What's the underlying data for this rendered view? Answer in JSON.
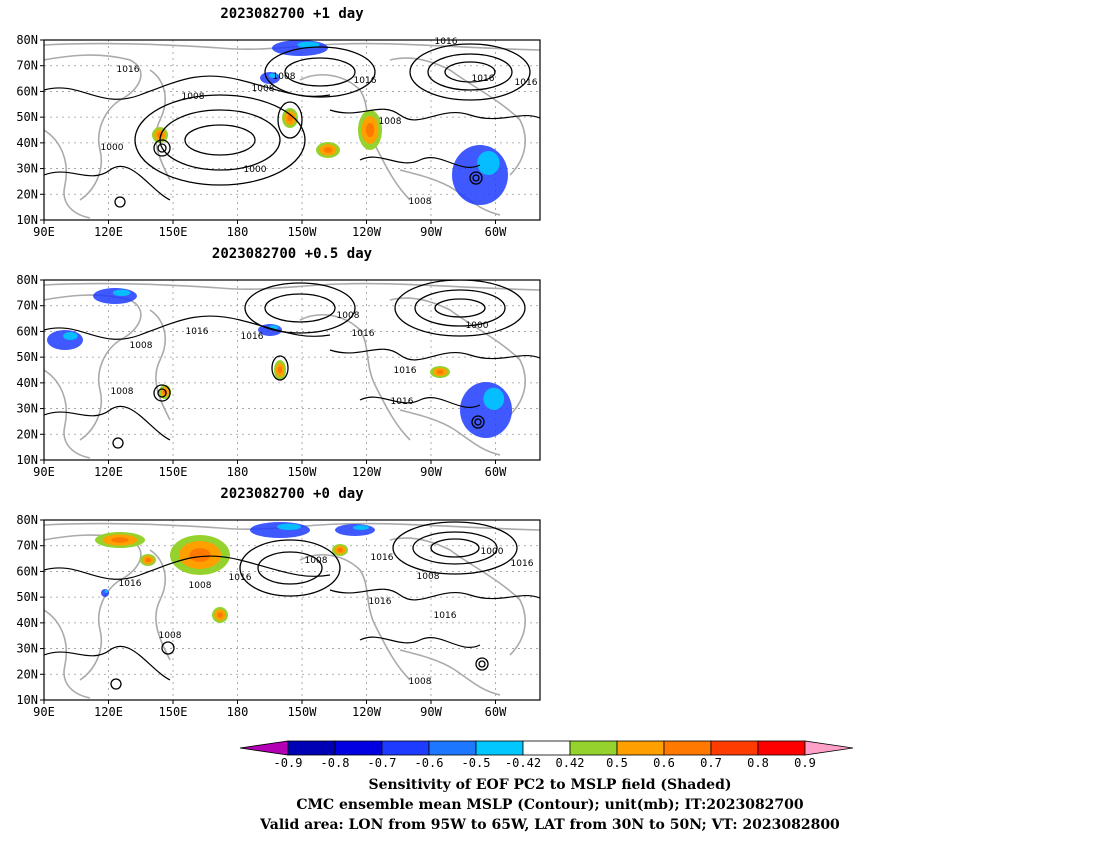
{
  "panels": [
    {
      "title": "2023082700 +1 day"
    },
    {
      "title": "2023082700 +0.5 day"
    },
    {
      "title": "2023082700 +0 day"
    }
  ],
  "axes": {
    "lat_labels": [
      "80N",
      "70N",
      "60N",
      "50N",
      "40N",
      "30N",
      "20N",
      "10N"
    ],
    "lon_labels": [
      "90E",
      "120E",
      "150E",
      "180",
      "150W",
      "120W",
      "90W",
      "60W"
    ]
  },
  "contour_labels": {
    "p1": [
      "1016",
      "1008",
      "1000",
      "1008",
      "1016",
      "1008",
      "1000",
      "1016",
      "1016",
      "1008",
      "1016",
      "1008"
    ],
    "p2": [
      "1008",
      "1000",
      "1008",
      "1016",
      "1016",
      "1008",
      "1016",
      "1016",
      "1016"
    ],
    "p3": [
      "1016",
      "1008",
      "1016",
      "1008",
      "1000",
      "1016",
      "1016",
      "1008",
      "1016",
      "1016",
      "1008",
      "1008"
    ]
  },
  "colorbar": {
    "ticks": [
      "-0.9",
      "-0.8",
      "-0.7",
      "-0.6",
      "-0.5",
      "-0.42",
      "0.42",
      "0.5",
      "0.6",
      "0.7",
      "0.8",
      "0.9"
    ],
    "colors": [
      "#0000b4",
      "#0000e1",
      "#1e3cff",
      "#1e78ff",
      "#00c8ff",
      "#ffffff",
      "#96d22d",
      "#ffa000",
      "#ff7800",
      "#ff3c00",
      "#ff0000"
    ],
    "low_color": "#b400b4",
    "high_color": "#ffa0c8"
  },
  "caption": {
    "line1": "Sensitivity of EOF PC2 to MSLP field (Shaded)",
    "line2": "CMC ensemble mean MSLP (Contour); unit(mb); IT:2023082700",
    "line3": "Valid area: LON from 95W to 65W, LAT from 30N to 50N; VT: 2023082800"
  }
}
